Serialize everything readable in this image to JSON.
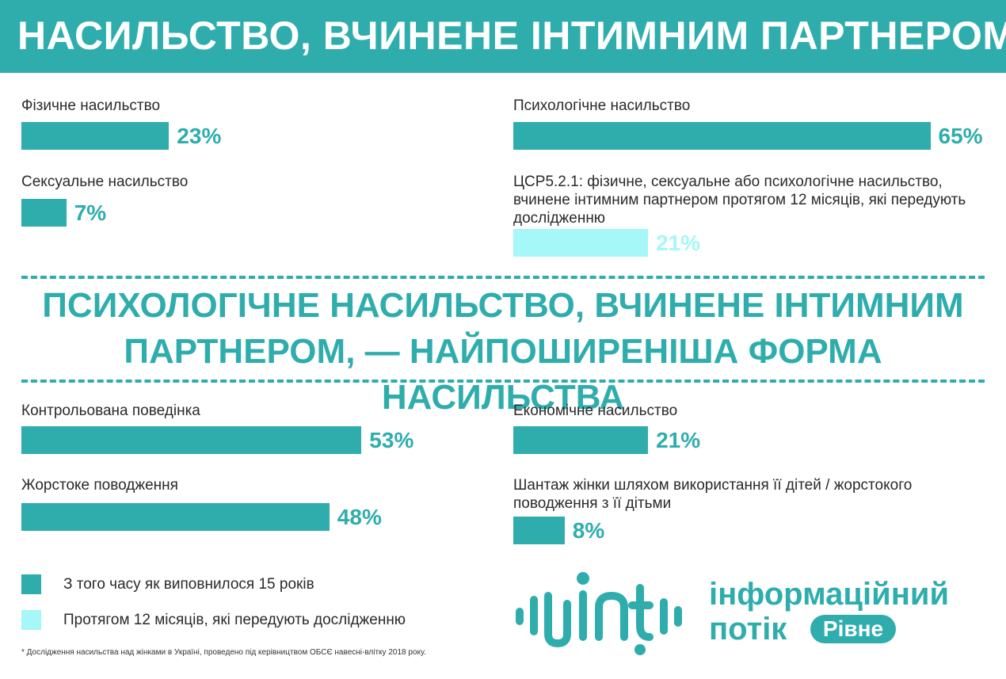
{
  "header": {
    "title": "НАСИЛЬСТВО, ВЧИНЕНЕ ІНТИМНИМ ПАРТНЕРОМ"
  },
  "colors": {
    "since15": "#2fadad",
    "last12": "#a6f7f7",
    "header_bg": "#2fadad"
  },
  "chart_data": [
    {
      "type": "bar",
      "title": "НАСИЛЬСТВО, ВЧИНЕНЕ ІНТИМНИМ ПАРТНЕРОМ",
      "categories": [
        "Фізичне насильство",
        "Сексуальне насильство",
        "Психологічне насильство",
        "ЦСР5.2.1: фізичне, сексуальне або психологічне насильство, вчинене інтимним партнером протягом 12 місяців, які передують дослідженню"
      ],
      "values": [
        23,
        7,
        65,
        21
      ],
      "value_labels": [
        "23%",
        "7%",
        "65%",
        "21%"
      ],
      "series_kind": [
        "since15",
        "since15",
        "since15",
        "last12"
      ],
      "unit": "%"
    },
    {
      "type": "bar",
      "title": "ПСИХОЛОГІЧНЕ НАСИЛЬСТВО, ВЧИНЕНЕ ІНТИМНИМ ПАРТНЕРОМ, — НАЙПОШИРЕНІША ФОРМА НАСИЛЬСТВА",
      "categories": [
        "Контрольована поведінка",
        "Жорстоке поводження",
        "Економічне насильство",
        "Шантаж жінки шляхом використання її дітей / жорстокого поводження з її дітьми"
      ],
      "values": [
        53,
        48,
        21,
        8
      ],
      "value_labels": [
        "53%",
        "48%",
        "21%",
        "8%"
      ],
      "series_kind": [
        "since15",
        "since15",
        "since15",
        "since15"
      ],
      "unit": "%"
    }
  ],
  "headline": {
    "line1": "ПСИХОЛОГІЧНЕ НАСИЛЬСТВО, ВЧИНЕНЕ ІНТИМНИМ",
    "line2": "ПАРТНЕРОМ, — НАЙПОШИРЕНІША ФОРМА НАСИЛЬСТВА"
  },
  "legend": [
    {
      "label": "З того часу як виповнилося 15 років",
      "kind": "since15"
    },
    {
      "label": "Протягом 12 місяців, які передують дослідженню",
      "kind": "last12"
    }
  ],
  "footnote": "* Дослідження насильства над жінками в Україні, проведено під керівництвом ОБСЄ навесні-влітку 2018 року.",
  "logo": {
    "line1": "інформаційний",
    "line2": "потік",
    "badge": "Рівне",
    "icon": "soundwave-logo-icon"
  }
}
